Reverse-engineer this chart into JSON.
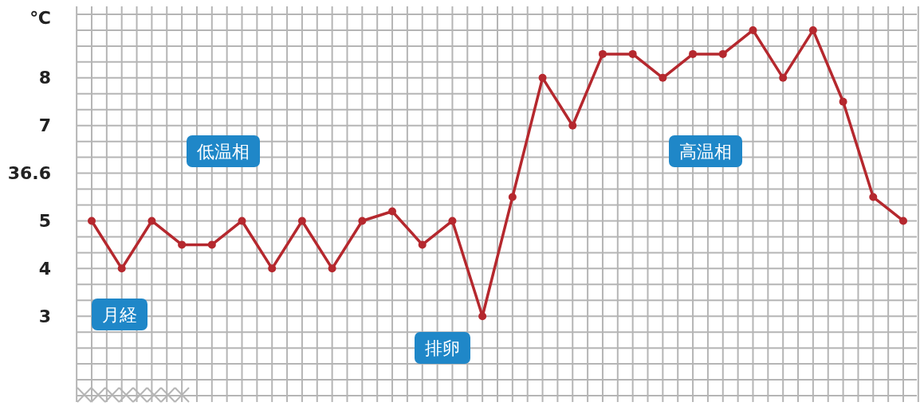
{
  "chart_data": {
    "type": "line",
    "ylabel": "℃",
    "categories": [
      null,
      null,
      null,
      null,
      null,
      null,
      null,
      null,
      null,
      null,
      null,
      null,
      null,
      null,
      null,
      null,
      null,
      null,
      null,
      null,
      null,
      null,
      null,
      null,
      null,
      null,
      null,
      null
    ],
    "series": [
      {
        "color": "#b5282e",
        "values": [
          5,
          4,
          5,
          4.5,
          4.5,
          5,
          4,
          5,
          4,
          5,
          5.2,
          4.5,
          5,
          3,
          5.5,
          8,
          7,
          8.5,
          8.5,
          8,
          8.5,
          8.5,
          9,
          8,
          9,
          7.5,
          5.5,
          5
        ]
      }
    ],
    "ylim": [
      1.2,
      9.5
    ],
    "yticks": [
      3,
      4,
      5,
      {
        "value": 6,
        "label": null
      },
      7,
      8
    ],
    "grid": true,
    "marker": "circle",
    "line_style": "solid",
    "tick_labels": "y",
    "annotations": [
      "低温相",
      "高温相",
      "月経",
      "排卵",
      "36.6"
    ]
  }
}
